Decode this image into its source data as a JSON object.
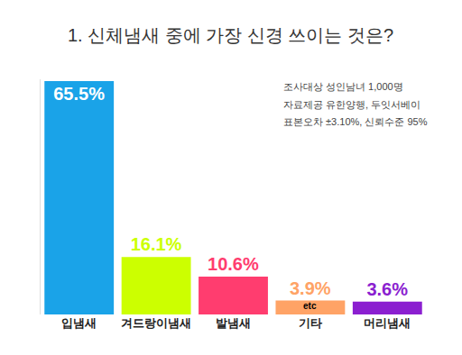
{
  "chart_data": {
    "type": "bar",
    "title": "1. 신체냄새 중에 가장 신경 쓰이는 것은?",
    "categories": [
      "입냄새",
      "겨드랑이냄새",
      "발냄새",
      "기타",
      "머리냄새"
    ],
    "values": [
      65.5,
      16.1,
      10.6,
      3.9,
      3.6
    ],
    "value_labels": [
      "65.5%",
      "16.1%",
      "10.6%",
      "3.9%",
      "3.6%"
    ],
    "colors": [
      "#1aa3e8",
      "#ccff00",
      "#ff3d6f",
      "#ffa366",
      "#8b1fd0"
    ],
    "ylim": [
      0,
      66
    ],
    "yticks": [],
    "grid": false,
    "data_labels": true,
    "tick_labels": "x",
    "annotations": [
      {
        "text": "조사대상 성인남녀 1,000명"
      },
      {
        "text": "자료제공 유한양행, 두잇서베이"
      },
      {
        "text": "표본오차 ±3.10%, 신뢰수준 95%"
      },
      {
        "text": "etc",
        "category": "기타"
      }
    ]
  }
}
